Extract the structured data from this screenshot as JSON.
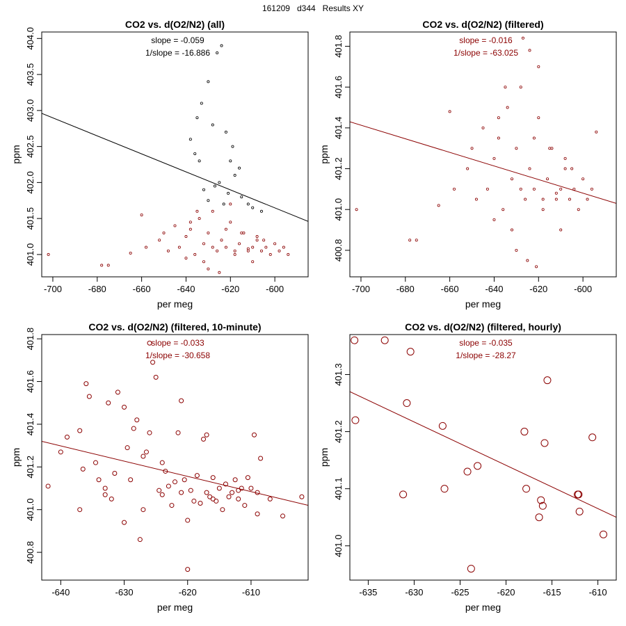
{
  "page": {
    "title": "161209   d344   Results XY"
  },
  "colors": {
    "black": "#000000",
    "red": "#8B0000"
  },
  "chart_data": [
    {
      "type": "scatter",
      "title": "CO2 vs. d(O2/N2) (all)",
      "xlabel": "per meg",
      "ylabel": "ppm",
      "xlim": [
        -705,
        -585
      ],
      "ylim": [
        400.69,
        404.09
      ],
      "xticks": [
        -700,
        -680,
        -660,
        -640,
        -620,
        -600
      ],
      "yticks": [
        401.0,
        401.5,
        402.0,
        402.5,
        403.0,
        403.5,
        404.0
      ],
      "ytick_labels": [
        "401.0",
        "401.5",
        "402.0",
        "402.5",
        "403.0",
        "403.5",
        "404.0"
      ],
      "annotation": {
        "slope": "slope = -0.059",
        "inv_slope": "1/slope = -16.886"
      },
      "fit_line": {
        "x1": -705,
        "y1": 402.96,
        "x2": -585,
        "y2": 401.46
      },
      "point_symbol": "dot",
      "series": [
        {
          "name": "filtered",
          "color": "#8B0000",
          "x": [
            -702,
            -678,
            -675,
            -665,
            -660,
            -658,
            -652,
            -650,
            -648,
            -645,
            -643,
            -640,
            -638,
            -636,
            -634,
            -632,
            -630,
            -628,
            -626,
            -624,
            -622,
            -620,
            -618,
            -616,
            -614,
            -612,
            -610,
            -608,
            -606,
            -604,
            -602,
            -600,
            -598,
            -596,
            -594,
            -640,
            -635,
            -630,
            -625,
            -620,
            -615,
            -610,
            -605,
            -638,
            -628,
            -618,
            -608,
            -632,
            -622,
            -612
          ],
          "y": [
            401.0,
            400.85,
            400.85,
            401.02,
            401.55,
            401.1,
            401.2,
            401.3,
            401.05,
            401.4,
            401.1,
            401.25,
            401.35,
            401.0,
            401.5,
            401.15,
            401.3,
            401.6,
            401.05,
            401.2,
            401.1,
            401.45,
            401.0,
            401.15,
            401.3,
            401.05,
            401.1,
            401.2,
            401.05,
            401.1,
            401.0,
            401.15,
            401.05,
            401.1,
            401.0,
            400.95,
            401.6,
            400.8,
            400.75,
            401.7,
            401.3,
            400.9,
            401.2,
            401.45,
            401.1,
            401.05,
            401.25,
            400.9,
            401.35,
            401.08
          ]
        },
        {
          "name": "all",
          "color": "#000000",
          "x": [
            -624,
            -626,
            -630,
            -633,
            -635,
            -638,
            -636,
            -628,
            -622,
            -620,
            -616,
            -618,
            -625,
            -632,
            -627,
            -621,
            -615,
            -612,
            -610,
            -606,
            -630,
            -623,
            -619,
            -634
          ],
          "y": [
            403.9,
            403.8,
            403.4,
            403.1,
            402.9,
            402.6,
            402.4,
            402.8,
            402.7,
            402.3,
            402.2,
            402.1,
            402.0,
            401.9,
            401.95,
            401.85,
            401.8,
            401.7,
            401.65,
            401.6,
            401.75,
            401.7,
            402.5,
            402.3
          ]
        }
      ]
    },
    {
      "type": "scatter",
      "title": "CO2 vs. d(O2/N2) (filtered)",
      "xlabel": "per meg",
      "ylabel": "ppm",
      "xlim": [
        -705,
        -585
      ],
      "ylim": [
        400.67,
        401.87
      ],
      "xticks": [
        -700,
        -680,
        -660,
        -640,
        -620,
        -600
      ],
      "yticks": [
        400.8,
        401.0,
        401.2,
        401.4,
        401.6,
        401.8
      ],
      "ytick_labels": [
        "400.8",
        "401.0",
        "401.2",
        "401.4",
        "401.6",
        "401.8"
      ],
      "annotation": {
        "slope": "slope = -0.016",
        "inv_slope": "1/slope = -63.025"
      },
      "fit_line": {
        "x1": -705,
        "y1": 401.43,
        "x2": -585,
        "y2": 401.03
      },
      "point_symbol": "dot",
      "series": [
        {
          "name": "filtered",
          "color": "#8B0000",
          "x": [
            -702,
            -678,
            -675,
            -665,
            -660,
            -658,
            -652,
            -650,
            -648,
            -645,
            -643,
            -640,
            -638,
            -636,
            -634,
            -632,
            -630,
            -628,
            -626,
            -624,
            -622,
            -620,
            -618,
            -616,
            -614,
            -612,
            -610,
            -608,
            -606,
            -604,
            -602,
            -600,
            -598,
            -596,
            -594,
            -640,
            -635,
            -630,
            -625,
            -620,
            -615,
            -610,
            -605,
            -638,
            -628,
            -618,
            -608,
            -632,
            -622,
            -612,
            -627,
            -624,
            -621
          ],
          "y": [
            401.0,
            400.85,
            400.85,
            401.02,
            401.48,
            401.1,
            401.2,
            401.3,
            401.05,
            401.4,
            401.1,
            401.25,
            401.35,
            401.0,
            401.5,
            401.15,
            401.3,
            401.6,
            401.05,
            401.2,
            401.1,
            401.45,
            401.0,
            401.15,
            401.3,
            401.05,
            401.1,
            401.2,
            401.05,
            401.1,
            401.0,
            401.15,
            401.05,
            401.1,
            401.38,
            400.95,
            401.6,
            400.8,
            400.75,
            401.7,
            401.3,
            400.9,
            401.2,
            401.45,
            401.1,
            401.05,
            401.25,
            400.9,
            401.35,
            401.08,
            401.84,
            401.78,
            400.72
          ]
        }
      ]
    },
    {
      "type": "scatter",
      "title": "CO2 vs. d(O2/N2) (filtered, 10-minute)",
      "xlabel": "per meg",
      "ylabel": "ppm",
      "xlim": [
        -643,
        -601
      ],
      "ylim": [
        400.67,
        401.82
      ],
      "xticks": [
        -640,
        -630,
        -620,
        -610
      ],
      "yticks": [
        400.8,
        401.0,
        401.2,
        401.4,
        401.6,
        401.8
      ],
      "ytick_labels": [
        "400.8",
        "401.0",
        "401.2",
        "401.4",
        "401.6",
        "401.8"
      ],
      "annotation": {
        "slope": "slope = -0.033",
        "inv_slope": "1/slope = -30.658"
      },
      "fit_line": {
        "x1": -643,
        "y1": 401.32,
        "x2": -601,
        "y2": 401.02
      },
      "point_symbol": "circle",
      "series": [
        {
          "name": "filtered",
          "color": "#8B0000",
          "x": [
            -642,
            -640,
            -639,
            -637,
            -636.5,
            -636,
            -635.5,
            -634.5,
            -634,
            -633,
            -632.5,
            -632,
            -631.5,
            -631,
            -630,
            -629.5,
            -629,
            -628.5,
            -628,
            -627.5,
            -627,
            -626.5,
            -626,
            -625.5,
            -625,
            -624.5,
            -624,
            -623.5,
            -623,
            -622.5,
            -622,
            -621.5,
            -621,
            -620.5,
            -620,
            -619.5,
            -619,
            -618.5,
            -618,
            -617.5,
            -617,
            -616.5,
            -616,
            -615.5,
            -615,
            -614.5,
            -614,
            -613.5,
            -613,
            -612.5,
            -612,
            -611.5,
            -611,
            -610.5,
            -610,
            -609.5,
            -609,
            -608.5,
            -607,
            -605,
            -602,
            -627,
            -626,
            -630,
            -633,
            -637,
            -621,
            -617,
            -612,
            -609,
            -620,
            -616,
            -624
          ],
          "y": [
            401.11,
            401.27,
            401.34,
            401.0,
            401.19,
            401.59,
            401.53,
            401.22,
            401.14,
            401.1,
            401.5,
            401.05,
            401.17,
            401.55,
            400.94,
            401.29,
            401.14,
            401.38,
            401.42,
            400.86,
            401.25,
            401.27,
            401.78,
            401.69,
            401.62,
            401.09,
            401.07,
            401.18,
            401.11,
            401.02,
            401.13,
            401.36,
            401.51,
            401.14,
            400.95,
            401.09,
            401.04,
            401.16,
            401.03,
            401.33,
            401.08,
            401.06,
            401.15,
            401.04,
            401.1,
            401.0,
            401.12,
            401.06,
            401.08,
            401.14,
            401.05,
            401.1,
            401.02,
            401.15,
            401.1,
            401.35,
            401.08,
            401.24,
            401.05,
            400.97,
            401.06,
            401.0,
            401.36,
            401.48,
            401.07,
            401.37,
            401.08,
            401.35,
            401.09,
            400.98,
            400.72,
            401.05,
            401.22
          ]
        }
      ]
    },
    {
      "type": "scatter",
      "title": "CO2 vs. d(O2/N2) (filtered, hourly)",
      "xlabel": "per meg",
      "ylabel": "ppm",
      "xlim": [
        -637,
        -608
      ],
      "ylim": [
        400.94,
        401.37
      ],
      "xticks": [
        -635,
        -630,
        -625,
        -620,
        -615,
        -610
      ],
      "yticks": [
        401.0,
        401.1,
        401.2,
        401.3
      ],
      "ytick_labels": [
        "401.0",
        "401.1",
        "401.2",
        "401.3"
      ],
      "annotation": {
        "slope": "slope = -0.035",
        "inv_slope": "1/slope = -28.27"
      },
      "fit_line": {
        "x1": -637,
        "y1": 401.27,
        "x2": -608,
        "y2": 401.05
      },
      "point_symbol": "circle",
      "series": [
        {
          "name": "filtered",
          "color": "#8B0000",
          "x": [
            -636.5,
            -636.4,
            -633.2,
            -631.2,
            -630.8,
            -630.4,
            -626.9,
            -626.7,
            -624.2,
            -623.8,
            -623.1,
            -618.0,
            -617.8,
            -616.4,
            -616.2,
            -616.0,
            -615.8,
            -615.5,
            -612.2,
            -612.1,
            -612.0,
            -610.6,
            -609.4
          ],
          "y": [
            401.36,
            401.22,
            401.36,
            401.09,
            401.25,
            401.34,
            401.21,
            401.1,
            401.13,
            400.96,
            401.14,
            401.2,
            401.1,
            401.05,
            401.08,
            401.07,
            401.18,
            401.29,
            401.09,
            401.09,
            401.06,
            401.19,
            401.02
          ]
        }
      ]
    }
  ]
}
